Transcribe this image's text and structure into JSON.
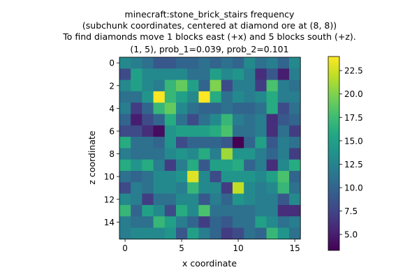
{
  "chart_data": {
    "type": "heatmap",
    "title_lines": [
      "minecraft:stone_brick_stairs frequency",
      "(subchunk coordinates, centered at diamond ore at (8, 8))",
      "To find diamonds move 1 blocks east (+x) and 5 blocks south (+z).",
      "(1, 5), prob_1=0.039, prob_2=0.101"
    ],
    "xlabel": "x coordinate",
    "ylabel": "z coordinate",
    "x_ticks": [
      "0",
      "5",
      "10",
      "15"
    ],
    "y_ticks": [
      "0",
      "2",
      "4",
      "6",
      "8",
      "10",
      "12",
      "14"
    ],
    "colorbar": {
      "min": 3.3,
      "max": 24,
      "ticks": [
        "5.0",
        "7.5",
        "10.0",
        "12.5",
        "15.0",
        "17.5",
        "20.0",
        "22.5"
      ],
      "tick_values": [
        5,
        7.5,
        10,
        12.5,
        15,
        17.5,
        20,
        22.5
      ]
    },
    "grid": [
      [
        13,
        12,
        11,
        9,
        9,
        10,
        10,
        11,
        10,
        11,
        10,
        13,
        11,
        12,
        10,
        13
      ],
      [
        8,
        15,
        13,
        13,
        13,
        13,
        11,
        11,
        15,
        13,
        14,
        12,
        6,
        9,
        5,
        12
      ],
      [
        13,
        15,
        13,
        12,
        17,
        19,
        15,
        10,
        20,
        8,
        12,
        12,
        7,
        18,
        12,
        11
      ],
      [
        11,
        11,
        14,
        24,
        17,
        15,
        13,
        24,
        16,
        11,
        13,
        12,
        13,
        16,
        12,
        12
      ],
      [
        12,
        7,
        10,
        17,
        19,
        13,
        11,
        10,
        10,
        11,
        10,
        10,
        11,
        16,
        8,
        11
      ],
      [
        10,
        5,
        8,
        10,
        16,
        11,
        8,
        11,
        13,
        17,
        12,
        11,
        12,
        6,
        9,
        10
      ],
      [
        8,
        8,
        6,
        4,
        14,
        15,
        15,
        15,
        16,
        18,
        11,
        11,
        12,
        6,
        11,
        7
      ],
      [
        16,
        11,
        11,
        10,
        14,
        8,
        10,
        10,
        10,
        9,
        3.3,
        10,
        15,
        9,
        12,
        11
      ],
      [
        12,
        11,
        11,
        11,
        13,
        14,
        13,
        16,
        12,
        21,
        14,
        14,
        12,
        10,
        12,
        7
      ],
      [
        16,
        14,
        16,
        12,
        7,
        12,
        16,
        9,
        15,
        15,
        16,
        10,
        12,
        6,
        13,
        16
      ],
      [
        11,
        10,
        11,
        13,
        13,
        14,
        23,
        13,
        8,
        14,
        14,
        14,
        13,
        15,
        18,
        10
      ],
      [
        8,
        12,
        11,
        13,
        13,
        12,
        17,
        13,
        13,
        7,
        22,
        13,
        12,
        13,
        17,
        11
      ],
      [
        13,
        12,
        7,
        11,
        11,
        13,
        13,
        9,
        12,
        10,
        14,
        13,
        12,
        12,
        9,
        13
      ],
      [
        17,
        10,
        15,
        13,
        8,
        16,
        13,
        18,
        11,
        11,
        11,
        11,
        12,
        12,
        6,
        6
      ],
      [
        12,
        11,
        11,
        17,
        15,
        12,
        10,
        7,
        10,
        9,
        11,
        11,
        15,
        13,
        11,
        12
      ],
      [
        12,
        13,
        13,
        13,
        14,
        9,
        15,
        12,
        10,
        7,
        8,
        11,
        10,
        17,
        14,
        11
      ]
    ]
  }
}
